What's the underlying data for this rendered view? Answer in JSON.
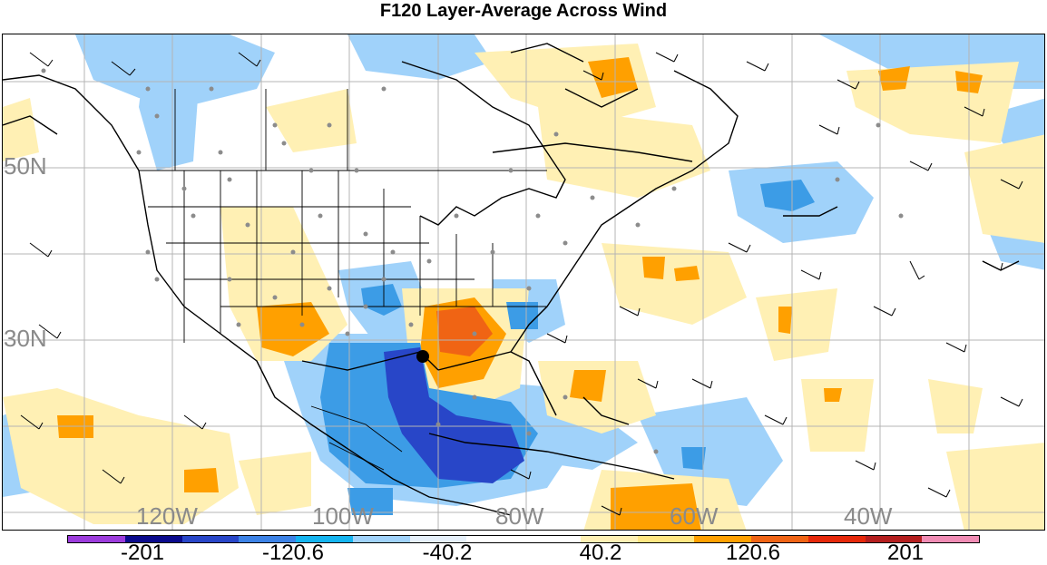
{
  "title": "F120 Layer-Average Across Wind",
  "map": {
    "lat_labels": [
      "50N",
      "30N"
    ],
    "lon_labels": [
      "120W",
      "100W",
      "80W",
      "60W",
      "40W"
    ],
    "grid_color": "#b4b4b4",
    "station_color": "#8c8c8c",
    "marker_color": "#000000"
  },
  "colorbar": {
    "colors": [
      "#9c3cdc",
      "#0a0a8c",
      "#2846c8",
      "#3c82e6",
      "#14b4f0",
      "#a0d2fa",
      "#e6f0fa",
      "#ffffff",
      "#ffffff",
      "#fff0b4",
      "#ffe682",
      "#ffa000",
      "#f06414",
      "#e6280a",
      "#b41e1e",
      "#f08cb4"
    ],
    "labels": [
      "-201",
      "-120.6",
      "-40.2",
      "40.2",
      "120.6",
      "201"
    ]
  }
}
